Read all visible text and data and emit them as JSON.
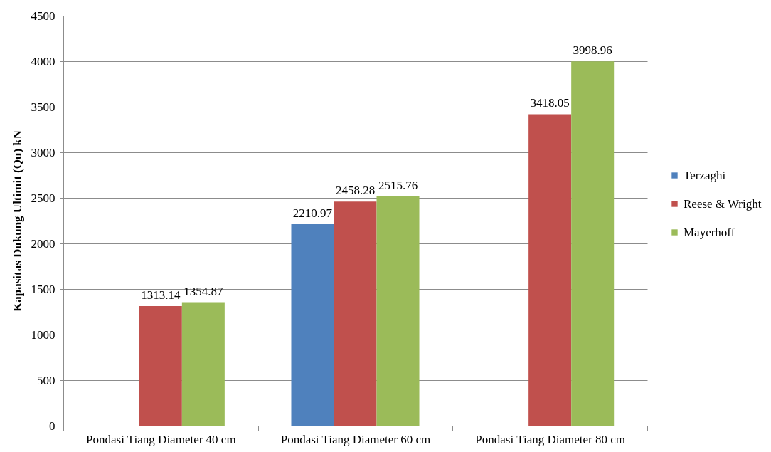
{
  "chart_data": {
    "type": "bar",
    "ylabel": "Kapasitas Dukung Ultimit  (Qu) kN",
    "categories": [
      "Pondasi Tiang Diameter 40 cm",
      "Pondasi Tiang Diameter 60 cm",
      "Pondasi Tiang Diameter 80 cm"
    ],
    "series": [
      {
        "name": "Terzaghi",
        "color": "#4f81bd",
        "values": [
          null,
          2210.97,
          null
        ]
      },
      {
        "name": "Reese & Wright",
        "color": "#c0504d",
        "values": [
          1313.14,
          2458.28,
          3418.05
        ]
      },
      {
        "name": "Mayerhoff",
        "color": "#9bbb59",
        "values": [
          1354.87,
          2515.76,
          3998.96
        ]
      }
    ],
    "ylim": [
      0,
      4500
    ],
    "yticks": [
      0,
      500,
      1000,
      1500,
      2000,
      2500,
      3000,
      3500,
      4000,
      4500
    ],
    "grid": "y",
    "legend": "right",
    "data_labels": true
  }
}
